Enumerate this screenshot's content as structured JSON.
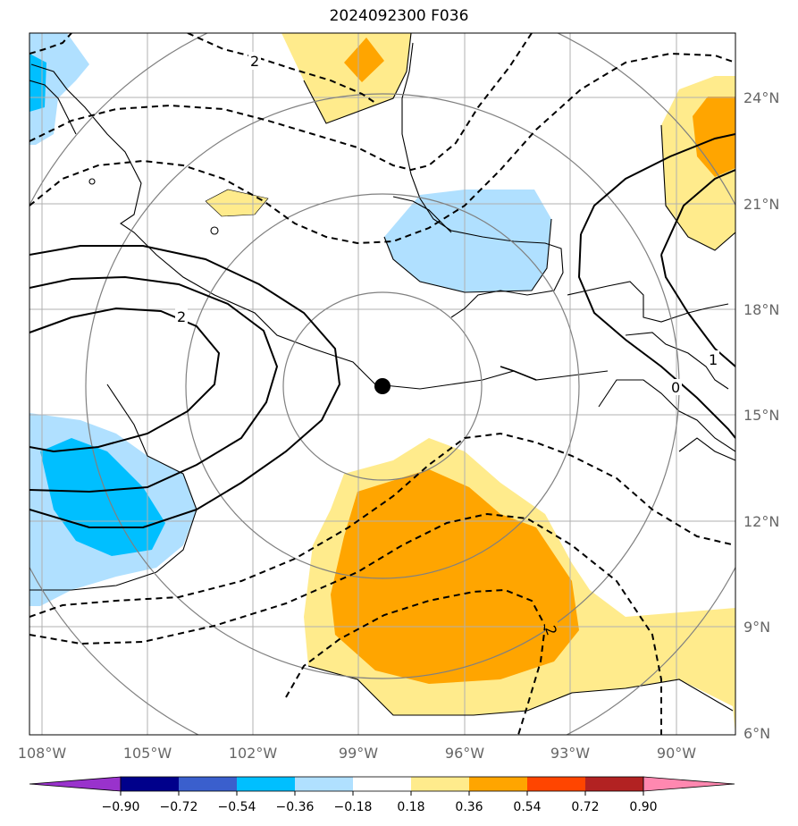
{
  "title": "2024092300 F036",
  "longitude_labels": [
    "108°W",
    "105°W",
    "102°W",
    "99°W",
    "96°W",
    "93°W",
    "90°W"
  ],
  "latitude_labels": [
    "24°N",
    "21°N",
    "18°N",
    "15°N",
    "12°N",
    "9°N",
    "6°N"
  ],
  "contour_labels": [
    "2",
    "2",
    "2",
    "0",
    "1"
  ],
  "colorbar": {
    "ticks": [
      "−0.90",
      "−0.72",
      "−0.54",
      "−0.36",
      "−0.18",
      "0.18",
      "0.36",
      "0.54",
      "0.72",
      "0.90"
    ],
    "colors": [
      "#9932cc",
      "#00008b",
      "#3a5fcd",
      "#00bfff",
      "#b0e0ff",
      "#ffffff",
      "#ffeb8c",
      "#ffa500",
      "#ff4500",
      "#b22222",
      "#ff88b0"
    ]
  },
  "marker": "storm-center-dot"
}
